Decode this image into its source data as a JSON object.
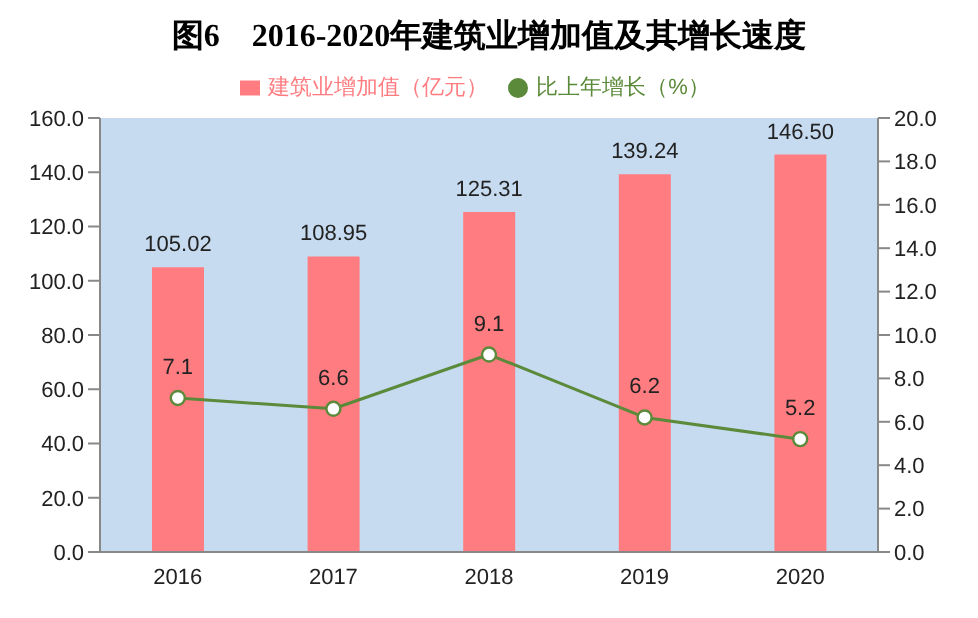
{
  "chart_data": {
    "type": "bar",
    "title": "图6　2016-2020年建筑业增加值及其增长速度",
    "categories": [
      "2016",
      "2017",
      "2018",
      "2019",
      "2020"
    ],
    "series": [
      {
        "name": "建筑业增加值（亿元）",
        "color": "#ff7c80",
        "values": [
          105.02,
          108.95,
          125.31,
          139.24,
          146.5
        ],
        "value_labels": [
          "105.02",
          "108.95",
          "125.31",
          "139.24",
          "146.50"
        ]
      },
      {
        "name": "比上年增长（%）",
        "type": "line",
        "axis": "y2",
        "color": "#5b8a3a",
        "values": [
          7.1,
          6.6,
          9.1,
          6.2,
          5.2
        ],
        "value_labels": [
          "7.1",
          "6.6",
          "9.1",
          "6.2",
          "5.2"
        ]
      }
    ],
    "ylim": [
      0,
      160
    ],
    "yticks": [
      {
        "value": 0,
        "label": "0.0"
      },
      {
        "value": 20,
        "label": "20.0"
      },
      {
        "value": 40,
        "label": "40.0"
      },
      {
        "value": 60,
        "label": "60.0"
      },
      {
        "value": 80,
        "label": "80.0"
      },
      {
        "value": 100,
        "label": "100.0"
      },
      {
        "value": 120,
        "label": "120.0"
      },
      {
        "value": 140,
        "label": "140.0"
      },
      {
        "value": 160,
        "label": "160.0"
      }
    ],
    "y2lim": [
      0,
      20
    ],
    "y2ticks": [
      {
        "value": 0,
        "label": "0.0"
      },
      {
        "value": 2,
        "label": "2.0"
      },
      {
        "value": 4,
        "label": "4.0"
      },
      {
        "value": 6,
        "label": "6.0"
      },
      {
        "value": 8,
        "label": "8.0"
      },
      {
        "value": 10,
        "label": "10.0"
      },
      {
        "value": 12,
        "label": "12.0"
      },
      {
        "value": 14,
        "label": "14.0"
      },
      {
        "value": 16,
        "label": "16.0"
      },
      {
        "value": 18,
        "label": "18.0"
      },
      {
        "value": 20,
        "label": "20.0"
      }
    ],
    "legend": "top",
    "marker": "circle",
    "grid": false
  }
}
